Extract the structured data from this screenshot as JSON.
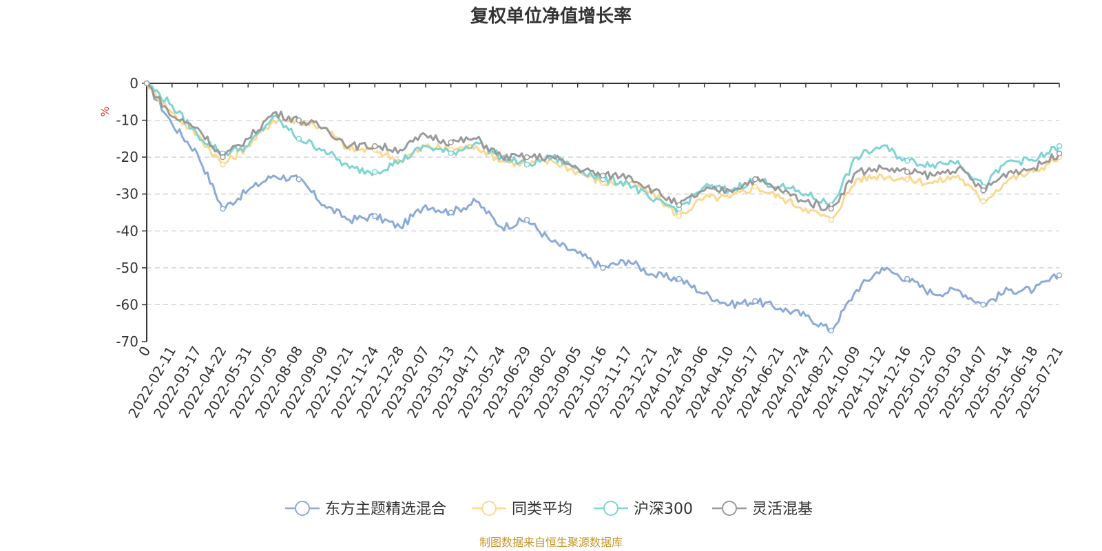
{
  "chart_data": {
    "type": "line",
    "title": "复权单位净值增长率",
    "ylabel": "%",
    "ylim": [
      -70,
      0
    ],
    "yticks": [
      0,
      -10,
      -20,
      -30,
      -40,
      -50,
      -60,
      -70
    ],
    "grid": true,
    "legend_position": "bottom",
    "source": "制图数据来自恒生聚源数据库",
    "x": [
      "0",
      "2022-02-11",
      "2022-03-17",
      "2022-04-22",
      "2022-05-31",
      "2022-07-05",
      "2022-08-08",
      "2022-09-09",
      "2022-10-21",
      "2022-11-24",
      "2022-12-28",
      "2023-02-07",
      "2023-03-13",
      "2023-04-17",
      "2023-05-24",
      "2023-06-29",
      "2023-08-02",
      "2023-09-05",
      "2023-10-16",
      "2023-11-17",
      "2023-12-21",
      "2024-01-24",
      "2024-03-06",
      "2024-04-10",
      "2024-05-17",
      "2024-06-21",
      "2024-07-24",
      "2024-08-27",
      "2024-10-09",
      "2024-11-12",
      "2024-12-16",
      "2025-01-20",
      "2025-03-03",
      "2025-04-07",
      "2025-05-14",
      "2025-06-18",
      "2025-07-21"
    ],
    "series": [
      {
        "name": "东方主题精选混合",
        "color": "#8aaad8",
        "values": [
          0,
          -11,
          -19,
          -34,
          -29,
          -25,
          -26,
          -33,
          -37,
          -36,
          -39,
          -33,
          -35,
          -32,
          -39,
          -37,
          -43,
          -46,
          -50,
          -48,
          -52,
          -53,
          -57,
          -60,
          -59,
          -61,
          -63,
          -67,
          -56,
          -50,
          -53,
          -57,
          -56,
          -60,
          -56,
          -56,
          -52
        ]
      },
      {
        "name": "同类平均",
        "color": "#fcd88e",
        "values": [
          0,
          -8,
          -14,
          -22,
          -17,
          -10,
          -10,
          -12,
          -18,
          -18,
          -21,
          -17,
          -18,
          -17,
          -21,
          -22,
          -21,
          -24,
          -27,
          -27,
          -30,
          -36,
          -31,
          -31,
          -28,
          -31,
          -34,
          -37,
          -26,
          -25,
          -26,
          -27,
          -25,
          -32,
          -26,
          -24,
          -20
        ]
      },
      {
        "name": "沪深300",
        "color": "#7fd3d4",
        "values": [
          0,
          -6,
          -14,
          -19,
          -17,
          -9,
          -15,
          -18,
          -23,
          -24,
          -21,
          -17,
          -19,
          -16,
          -20,
          -22,
          -20,
          -23,
          -26,
          -27,
          -32,
          -34,
          -28,
          -29,
          -26,
          -28,
          -30,
          -33,
          -20,
          -17,
          -21,
          -22,
          -21,
          -28,
          -21,
          -21,
          -17
        ]
      },
      {
        "name": "灵活混基",
        "color": "#9a9a9a",
        "values": [
          0,
          -9,
          -12,
          -20,
          -15,
          -8,
          -10,
          -12,
          -17,
          -17,
          -18,
          -14,
          -16,
          -15,
          -20,
          -20,
          -20,
          -23,
          -25,
          -25,
          -29,
          -33,
          -29,
          -29,
          -26,
          -29,
          -32,
          -34,
          -24,
          -23,
          -24,
          -25,
          -23,
          -29,
          -24,
          -23,
          -19
        ]
      }
    ]
  }
}
